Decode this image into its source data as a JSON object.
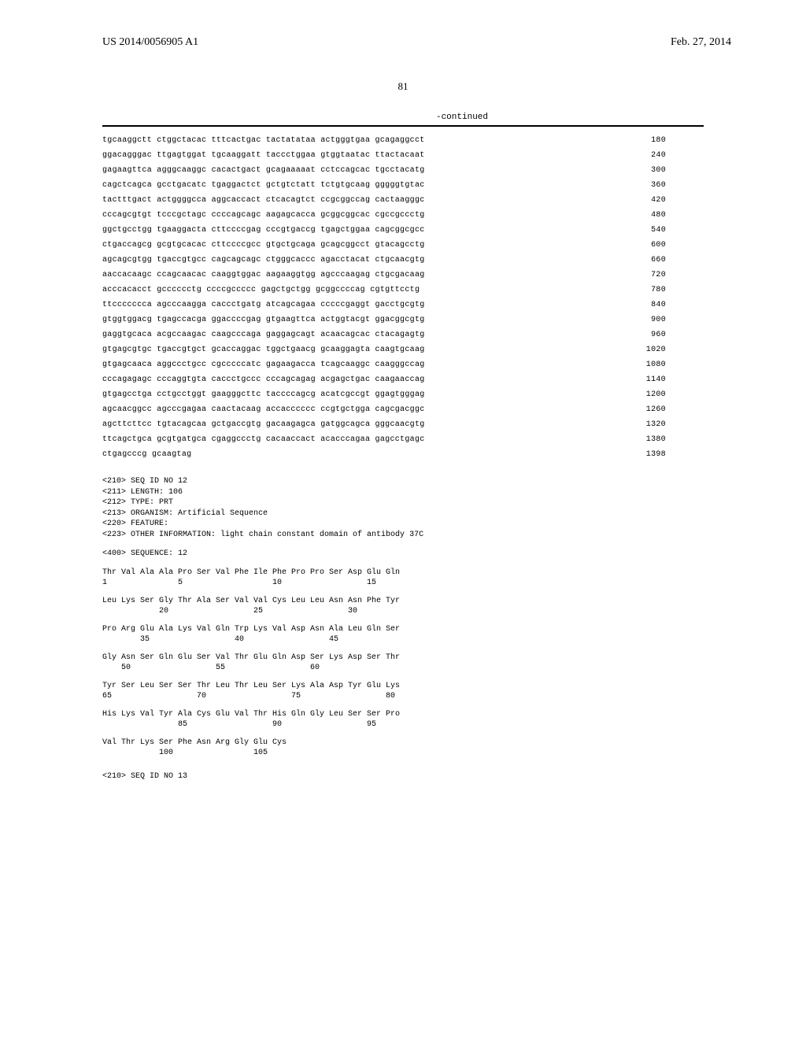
{
  "header": {
    "patent_id": "US 2014/0056905 A1",
    "date": "Feb. 27, 2014"
  },
  "page_number": "81",
  "continued_label": "-continued",
  "dna_sequence": {
    "rows": [
      {
        "seq": "tgcaaggctt ctggctacac tttcactgac tactatataa actgggtgaa gcagaggcct",
        "pos": "180"
      },
      {
        "seq": "ggacagggac ttgagtggat tgcaaggatt taccctggaa gtggtaatac ttactacaat",
        "pos": "240"
      },
      {
        "seq": "gagaagttca agggcaaggc cacactgact gcagaaaaat cctccagcac tgcctacatg",
        "pos": "300"
      },
      {
        "seq": "cagctcagca gcctgacatc tgaggactct gctgtctatt tctgtgcaag gggggtgtac",
        "pos": "360"
      },
      {
        "seq": "tactttgact actggggcca aggcaccact ctcacagtct ccgcggccag cactaagggc",
        "pos": "420"
      },
      {
        "seq": "cccagcgtgt tcccgctagc ccccagcagc aagagcacca gcggcggcac cgccgccctg",
        "pos": "480"
      },
      {
        "seq": "ggctgcctgg tgaaggacta cttccccgag cccgtgaccg tgagctggaa cagcggcgcc",
        "pos": "540"
      },
      {
        "seq": "ctgaccagcg gcgtgcacac cttccccgcc gtgctgcaga gcagcggcct gtacagcctg",
        "pos": "600"
      },
      {
        "seq": "agcagcgtgg tgaccgtgcc cagcagcagc ctgggcaccc agacctacat ctgcaacgtg",
        "pos": "660"
      },
      {
        "seq": "aaccacaagc ccagcaacac caaggtggac aagaaggtgg agcccaagag ctgcgacaag",
        "pos": "720"
      },
      {
        "seq": "acccacacct gcccccctg ccccgccccc gagctgctgg gcggccccag cgtgttcctg",
        "pos": "780"
      },
      {
        "seq": "ttccccccca agcccaagga caccctgatg atcagcagaa cccccgaggt gacctgcgtg",
        "pos": "840"
      },
      {
        "seq": "gtggtggacg tgagccacga ggaccccgag gtgaagttca actggtacgt ggacggcgtg",
        "pos": "900"
      },
      {
        "seq": "gaggtgcaca acgccaagac caagcccaga gaggagcagt acaacagcac ctacagagtg",
        "pos": "960"
      },
      {
        "seq": "gtgagcgtgc tgaccgtgct gcaccaggac tggctgaacg gcaaggagta caagtgcaag",
        "pos": "1020"
      },
      {
        "seq": "gtgagcaaca aggccctgcc cgcccccatc gagaagacca tcagcaaggc caagggccag",
        "pos": "1080"
      },
      {
        "seq": "cccagagagc cccaggtgta caccctgccc cccagcagag acgagctgac caagaaccag",
        "pos": "1140"
      },
      {
        "seq": "gtgagcctga cctgcctggt gaagggcttc taccccagcg acatcgccgt ggagtgggag",
        "pos": "1200"
      },
      {
        "seq": "agcaacggcc agcccgagaa caactacaag accacccccc ccgtgctgga cagcgacggc",
        "pos": "1260"
      },
      {
        "seq": "agcttcttcc tgtacagcaa gctgaccgtg gacaagagca gatggcagca gggcaacgtg",
        "pos": "1320"
      },
      {
        "seq": "ttcagctgca gcgtgatgca cgaggccctg cacaaccact acacccagaa gagcctgagc",
        "pos": "1380"
      },
      {
        "seq": "ctgagcccg gcaagtag",
        "pos": "1398"
      }
    ]
  },
  "seq_meta": [
    "<210> SEQ ID NO 12",
    "<211> LENGTH: 106",
    "<212> TYPE: PRT",
    "<213> ORGANISM: Artificial Sequence",
    "<220> FEATURE:",
    "<223> OTHER INFORMATION: light chain constant domain of antibody 37C"
  ],
  "sequence_label": "<400> SEQUENCE: 12",
  "protein_sequence": [
    {
      "aa": "Thr Val Ala Ala Pro Ser Val Phe Ile Phe Pro Pro Ser Asp Glu Gln",
      "nums": "1               5                   10                  15"
    },
    {
      "aa": "Leu Lys Ser Gly Thr Ala Ser Val Val Cys Leu Leu Asn Asn Phe Tyr",
      "nums": "            20                  25                  30"
    },
    {
      "aa": "Pro Arg Glu Ala Lys Val Gln Trp Lys Val Asp Asn Ala Leu Gln Ser",
      "nums": "        35                  40                  45"
    },
    {
      "aa": "Gly Asn Ser Gln Glu Ser Val Thr Glu Gln Asp Ser Lys Asp Ser Thr",
      "nums": "    50                  55                  60"
    },
    {
      "aa": "Tyr Ser Leu Ser Ser Thr Leu Thr Leu Ser Lys Ala Asp Tyr Glu Lys",
      "nums": "65                  70                  75                  80"
    },
    {
      "aa": "His Lys Val Tyr Ala Cys Glu Val Thr His Gln Gly Leu Ser Ser Pro",
      "nums": "                85                  90                  95"
    },
    {
      "aa": "Val Thr Lys Ser Phe Asn Arg Gly Glu Cys",
      "nums": "            100                 105"
    }
  ],
  "seq_meta_bottom": "<210> SEQ ID NO 13"
}
